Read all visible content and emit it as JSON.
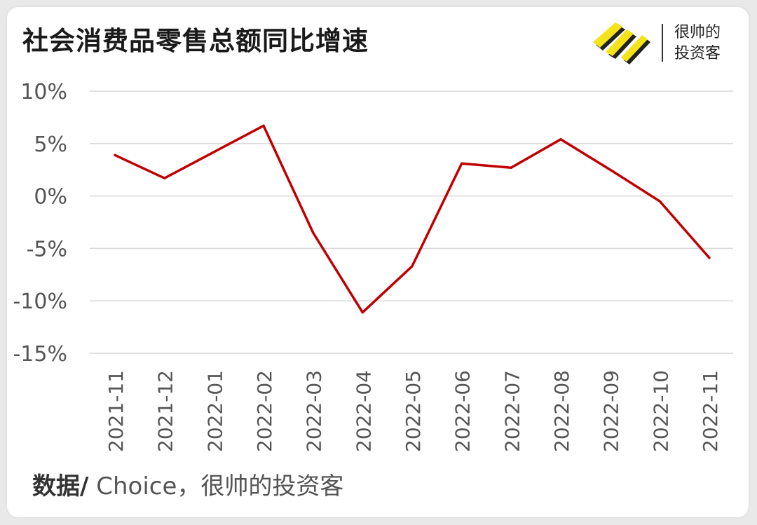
{
  "header": {
    "title": "社会消费品零售总额同比增速",
    "brand_line1": "很帅的",
    "brand_line2": "投资客",
    "brand_color": "#f5e31a"
  },
  "source": {
    "label": "数据/",
    "text": " Choice，很帅的投资客"
  },
  "chart_data": {
    "type": "line",
    "title": "社会消费品零售总额同比增速",
    "categories": [
      "2021-11",
      "2021-12",
      "2022-01",
      "2022-02",
      "2022-03",
      "2022-04",
      "2022-05",
      "2022-06",
      "2022-07",
      "2022-08",
      "2022-09",
      "2022-10",
      "2022-11"
    ],
    "values": [
      3.9,
      1.7,
      4.2,
      6.7,
      -3.5,
      -11.1,
      -6.7,
      3.1,
      2.7,
      5.4,
      2.5,
      -0.5,
      -5.9
    ],
    "ylim": [
      -15,
      10
    ],
    "yticks": [
      10,
      5,
      0,
      -5,
      -10,
      -15
    ],
    "ytick_labels": [
      "10%",
      "5%",
      "0%",
      "-5%",
      "-10%",
      "-15%"
    ],
    "line_color": "#c00000",
    "grid": true,
    "xlabel": "",
    "ylabel": ""
  }
}
